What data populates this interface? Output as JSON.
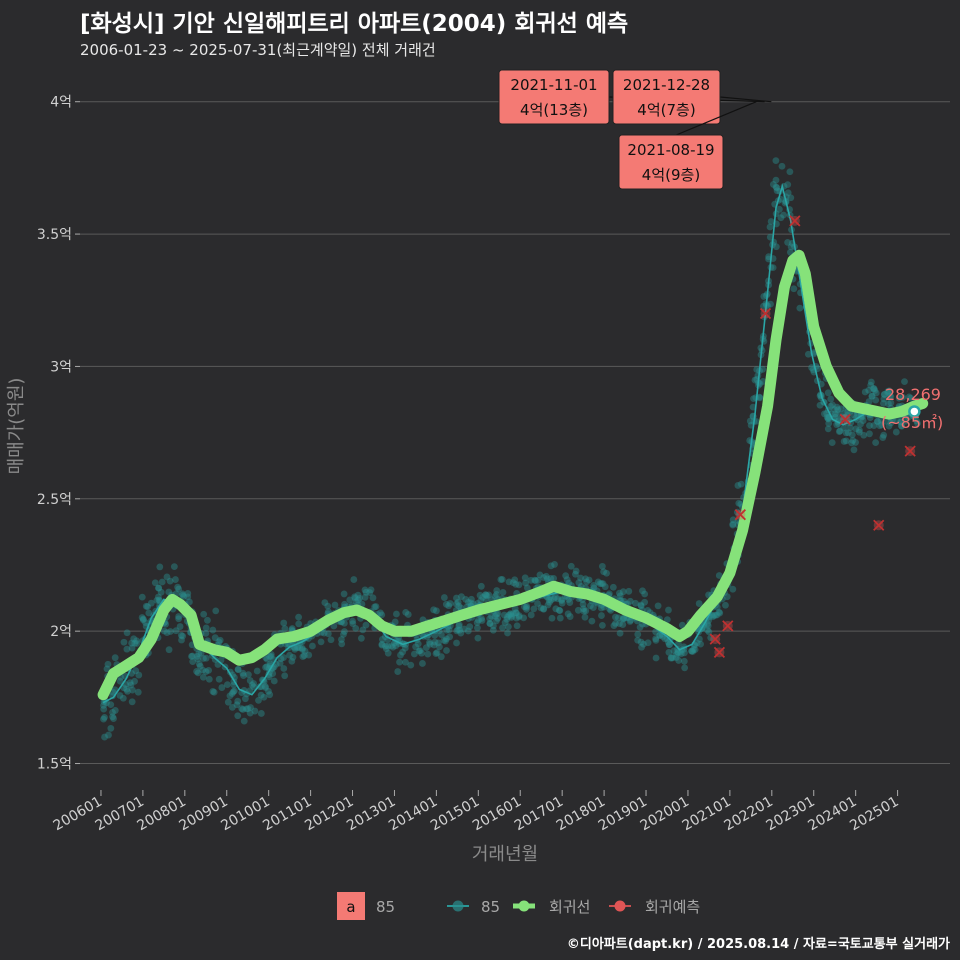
{
  "title": "[화성시] 기안 신일해피트리 아파트(2004) 회귀선 예측",
  "subtitle": "2006-01-23 ~ 2025-07-31(최근계약일) 전체 거래건",
  "caption": "©디아파트(dapt.kr) / 2025.08.14 / 자료=국토교통부 실거래가",
  "colors": {
    "background": "#2b2b2d",
    "grid": "#5a5a5a",
    "points": "#2a8f8f",
    "thin_line": "#2aa6a6",
    "regression": "#86e27a",
    "forecast": "#e05555",
    "annotation_bg": "#f47a74"
  },
  "chart_data": {
    "type": "scatter",
    "xlabel": "거래년월",
    "ylabel": "매매가(억원)",
    "ylim": [
      1.4,
      4.15
    ],
    "xlim": [
      "2005-07",
      "2026-04"
    ],
    "x_ticks": [
      "200601",
      "200701",
      "200801",
      "200901",
      "201001",
      "201101",
      "201201",
      "201301",
      "201401",
      "201501",
      "201601",
      "201701",
      "201801",
      "201901",
      "202001",
      "202101",
      "202201",
      "202301",
      "202401",
      "202501"
    ],
    "y_ticks": [
      {
        "value": 1.5,
        "label": "1.5억"
      },
      {
        "value": 2,
        "label": "2억"
      },
      {
        "value": 2.5,
        "label": "2.5억"
      },
      {
        "value": 3,
        "label": "3억"
      },
      {
        "value": 3.5,
        "label": "3.5억"
      },
      {
        "value": 4,
        "label": "4억"
      }
    ],
    "series": [
      {
        "name": "85",
        "kind": "moving-average",
        "points": [
          [
            2006.05,
            1.73
          ],
          [
            2006.3,
            1.75
          ],
          [
            2006.6,
            1.82
          ],
          [
            2006.9,
            1.92
          ],
          [
            2007.2,
            2.05
          ],
          [
            2007.5,
            2.12
          ],
          [
            2007.8,
            2.1
          ],
          [
            2008.1,
            2.06
          ],
          [
            2008.4,
            1.95
          ],
          [
            2008.7,
            1.9
          ],
          [
            2009.0,
            1.86
          ],
          [
            2009.3,
            1.78
          ],
          [
            2009.6,
            1.76
          ],
          [
            2009.9,
            1.82
          ],
          [
            2010.2,
            1.9
          ],
          [
            2010.5,
            1.94
          ],
          [
            2010.8,
            1.96
          ],
          [
            2011.2,
            2.0
          ],
          [
            2011.6,
            2.04
          ],
          [
            2012.0,
            2.08
          ],
          [
            2012.4,
            2.07
          ],
          [
            2012.8,
            1.98
          ],
          [
            2013.2,
            1.95
          ],
          [
            2013.6,
            1.97
          ],
          [
            2014.0,
            2.0
          ],
          [
            2014.5,
            2.04
          ],
          [
            2015.0,
            2.08
          ],
          [
            2015.5,
            2.1
          ],
          [
            2016.0,
            2.11
          ],
          [
            2016.5,
            2.13
          ],
          [
            2017.0,
            2.15
          ],
          [
            2017.5,
            2.14
          ],
          [
            2018.0,
            2.12
          ],
          [
            2018.5,
            2.08
          ],
          [
            2019.0,
            2.04
          ],
          [
            2019.5,
            1.98
          ],
          [
            2019.8,
            1.93
          ],
          [
            2020.1,
            1.95
          ],
          [
            2020.4,
            2.03
          ],
          [
            2020.7,
            2.12
          ],
          [
            2021.0,
            2.22
          ],
          [
            2021.3,
            2.45
          ],
          [
            2021.6,
            2.82
          ],
          [
            2021.9,
            3.28
          ],
          [
            2022.1,
            3.6
          ],
          [
            2022.25,
            3.68
          ],
          [
            2022.45,
            3.55
          ],
          [
            2022.7,
            3.3
          ],
          [
            2022.95,
            3.05
          ],
          [
            2023.2,
            2.88
          ],
          [
            2023.45,
            2.8
          ],
          [
            2023.7,
            2.78
          ],
          [
            2024.0,
            2.8
          ],
          [
            2024.3,
            2.83
          ],
          [
            2024.6,
            2.84
          ],
          [
            2024.9,
            2.84
          ],
          [
            2025.2,
            2.84
          ],
          [
            2025.45,
            2.83
          ]
        ]
      },
      {
        "name": "회귀선",
        "kind": "regression",
        "points": [
          [
            2006.05,
            1.76
          ],
          [
            2006.3,
            1.84
          ],
          [
            2006.6,
            1.87
          ],
          [
            2006.9,
            1.9
          ],
          [
            2007.2,
            1.97
          ],
          [
            2007.5,
            2.08
          ],
          [
            2007.7,
            2.12
          ],
          [
            2007.9,
            2.1
          ],
          [
            2008.15,
            2.06
          ],
          [
            2008.35,
            1.95
          ],
          [
            2008.7,
            1.93
          ],
          [
            2009.0,
            1.92
          ],
          [
            2009.3,
            1.89
          ],
          [
            2009.6,
            1.9
          ],
          [
            2009.9,
            1.93
          ],
          [
            2010.2,
            1.97
          ],
          [
            2010.6,
            1.98
          ],
          [
            2011.0,
            2.0
          ],
          [
            2011.4,
            2.04
          ],
          [
            2011.8,
            2.07
          ],
          [
            2012.1,
            2.08
          ],
          [
            2012.4,
            2.06
          ],
          [
            2012.7,
            2.02
          ],
          [
            2013.0,
            2.0
          ],
          [
            2013.4,
            2.0
          ],
          [
            2013.8,
            2.02
          ],
          [
            2014.2,
            2.04
          ],
          [
            2014.6,
            2.06
          ],
          [
            2015.0,
            2.08
          ],
          [
            2015.5,
            2.1
          ],
          [
            2016.0,
            2.12
          ],
          [
            2016.5,
            2.15
          ],
          [
            2016.8,
            2.17
          ],
          [
            2017.2,
            2.15
          ],
          [
            2017.6,
            2.14
          ],
          [
            2018.0,
            2.12
          ],
          [
            2018.5,
            2.08
          ],
          [
            2019.0,
            2.05
          ],
          [
            2019.5,
            2.01
          ],
          [
            2019.8,
            1.98
          ],
          [
            2020.0,
            2.0
          ],
          [
            2020.3,
            2.06
          ],
          [
            2020.7,
            2.13
          ],
          [
            2021.0,
            2.22
          ],
          [
            2021.3,
            2.38
          ],
          [
            2021.6,
            2.6
          ],
          [
            2021.9,
            2.85
          ],
          [
            2022.1,
            3.1
          ],
          [
            2022.3,
            3.3
          ],
          [
            2022.5,
            3.4
          ],
          [
            2022.65,
            3.42
          ],
          [
            2022.8,
            3.35
          ],
          [
            2023.0,
            3.15
          ],
          [
            2023.3,
            3.0
          ],
          [
            2023.6,
            2.9
          ],
          [
            2023.9,
            2.85
          ],
          [
            2024.2,
            2.84
          ],
          [
            2024.5,
            2.83
          ],
          [
            2024.8,
            2.82
          ],
          [
            2025.1,
            2.83
          ],
          [
            2025.4,
            2.85
          ],
          [
            2025.6,
            2.86
          ]
        ]
      },
      {
        "name": "회귀예측",
        "kind": "forecast-marks",
        "points": [
          [
            2020.65,
            1.97
          ],
          [
            2020.75,
            1.92
          ],
          [
            2020.95,
            2.02
          ],
          [
            2021.25,
            2.44
          ],
          [
            2021.85,
            3.2
          ],
          [
            2022.55,
            3.55
          ],
          [
            2023.75,
            2.8
          ],
          [
            2024.55,
            2.4
          ],
          [
            2025.3,
            2.68
          ]
        ]
      }
    ],
    "latest_point": {
      "x": 2025.4,
      "y": 2.83,
      "label_value": "28,269",
      "label_area": "(~85㎡)"
    },
    "annotations": [
      {
        "date": "2021-11-01",
        "price": "4억(13층)",
        "x": 2021.83,
        "y": 4.0
      },
      {
        "date": "2021-12-28",
        "price": "4억(7층)",
        "x": 2021.99,
        "y": 4.0
      },
      {
        "date": "2021-08-19",
        "price": "4억(9층)",
        "x": 2021.63,
        "y": 4.0
      }
    ],
    "legend": {
      "position": "bottom",
      "items": [
        {
          "key": "a",
          "label": "85",
          "style": "text-key"
        },
        {
          "label": "85",
          "style": "point-line"
        },
        {
          "label": "회귀선",
          "style": "regression"
        },
        {
          "label": "회귀예측",
          "style": "forecast"
        }
      ]
    },
    "grid": true
  }
}
